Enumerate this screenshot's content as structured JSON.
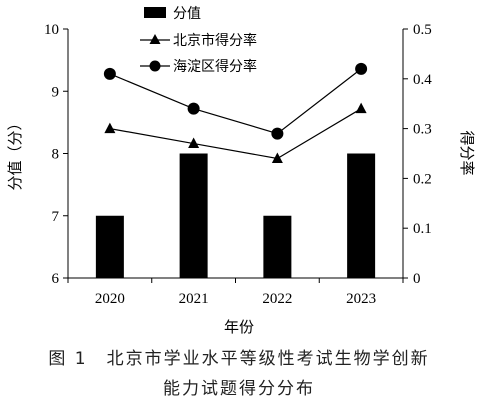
{
  "chart_data": {
    "type": "bar+line",
    "categories": [
      "2020",
      "2021",
      "2022",
      "2023"
    ],
    "bar_series": {
      "name": "分值",
      "axis": "left",
      "values": [
        7,
        8,
        7,
        8
      ],
      "color": "#000000"
    },
    "line_series": [
      {
        "name": "北京市得分率",
        "axis": "right",
        "marker": "triangle",
        "values": [
          0.3,
          0.27,
          0.24,
          0.34
        ],
        "color": "#000000"
      },
      {
        "name": "海淀区得分率",
        "axis": "right",
        "marker": "circle",
        "values": [
          0.41,
          0.34,
          0.29,
          0.42
        ],
        "color": "#000000"
      }
    ],
    "xlabel": "年份",
    "ylabel_left": "分值（分）",
    "ylabel_right": "得分率",
    "ylim_left": [
      6,
      10
    ],
    "yticks_left": [
      "6",
      "7",
      "8",
      "9",
      "10"
    ],
    "ylim_right": [
      0,
      0.5
    ],
    "yticks_right": [
      "0",
      "0.1",
      "0.2",
      "0.3",
      "0.4",
      "0.5"
    ],
    "grid": false,
    "legend_position": "top-right"
  },
  "caption": {
    "line1": "图 1　北京市学业水平等级性考试生物学创新",
    "line2": "能力试题得分分布"
  }
}
